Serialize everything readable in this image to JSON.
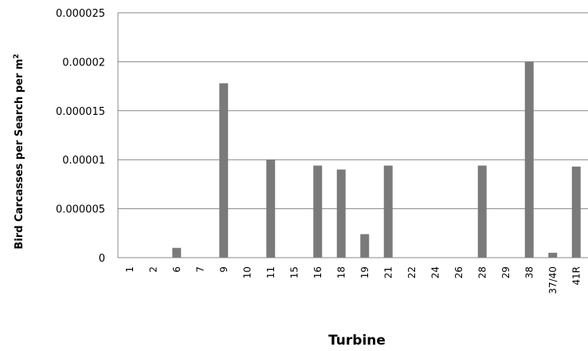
{
  "chart_data": {
    "type": "bar",
    "xlabel": "Turbine",
    "ylabel": "Bird Carcasses per Search per m",
    "ylabel_superscript": "2",
    "categories": [
      "1",
      "2",
      "6",
      "7",
      "9",
      "10",
      "11",
      "15",
      "16",
      "18",
      "19",
      "21",
      "22",
      "24",
      "26",
      "28",
      "29",
      "38",
      "37/40",
      "41R"
    ],
    "values": [
      0,
      0,
      1e-06,
      0,
      1.78e-05,
      0,
      1e-05,
      0,
      9.4e-06,
      9e-06,
      2.4e-06,
      9.4e-06,
      0,
      0,
      0,
      9.4e-06,
      0,
      2e-05,
      5e-07,
      9.3e-06
    ],
    "ylim": [
      0,
      2.5e-05
    ],
    "yticks": [
      0,
      5e-06,
      1e-05,
      1.5e-05,
      2e-05,
      2.5e-05
    ],
    "ytick_labels": [
      "0",
      "0.000005",
      "0.00001",
      "0.000015",
      "0.00002",
      "0.000025"
    ],
    "grid": "horizontal",
    "legend": "none",
    "colors": {
      "bar": "#7a7a7a",
      "axis": "#888888",
      "grid": "#888888"
    }
  }
}
